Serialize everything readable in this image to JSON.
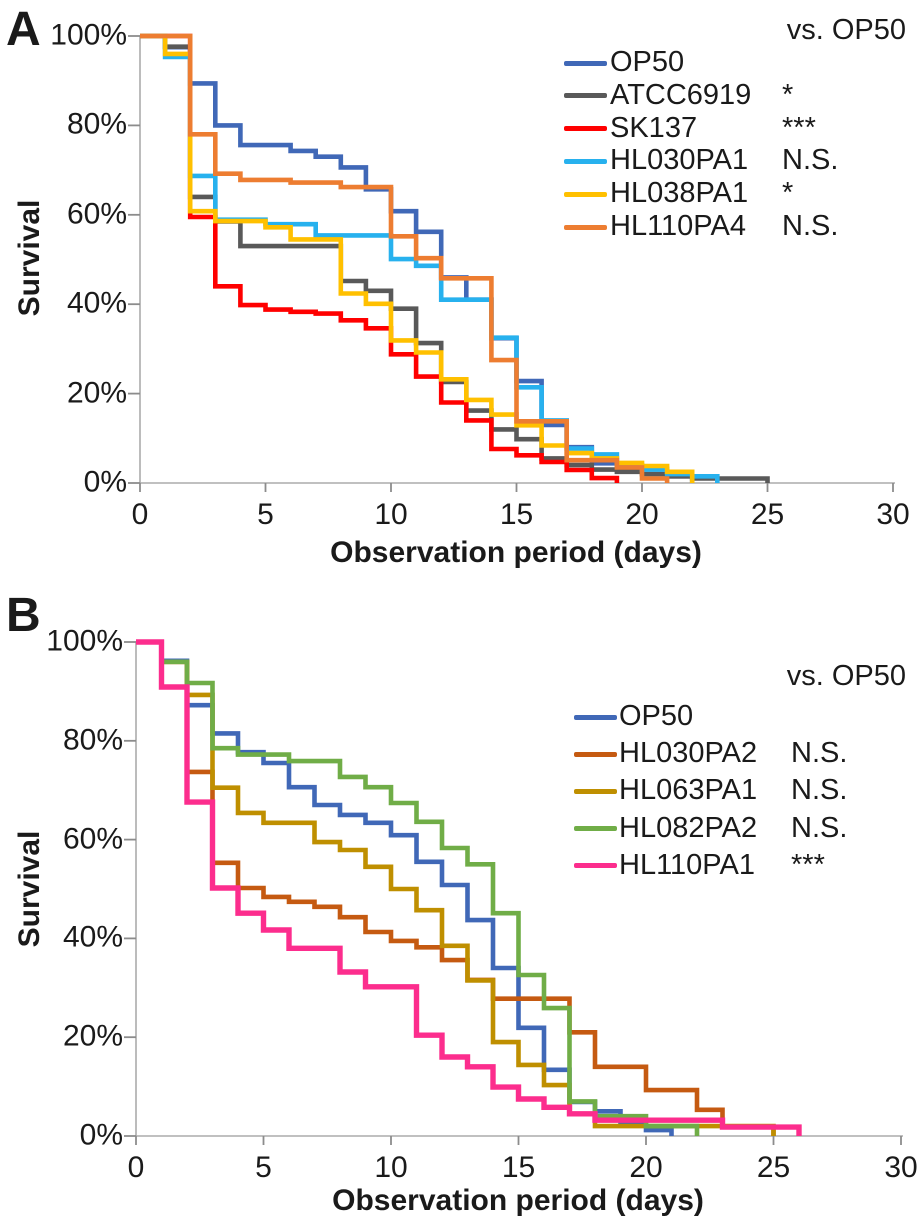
{
  "figure_background": "#FFFFFF",
  "axis_colors": {
    "axis_line": "#ABABAB",
    "tick_mark": "#8C8C8C",
    "text": "#1A1A1A"
  },
  "chart_data": [
    {
      "type": "line",
      "subtype": "kaplan-meier-step-survival",
      "panel_label": "A",
      "comparison_header": "vs. OP50",
      "xlabel": "Observation period (days)",
      "ylabel": "Survival",
      "xlim": [
        0,
        30
      ],
      "ylim_pct": [
        0,
        100
      ],
      "x_ticks": [
        0,
        5,
        10,
        15,
        20,
        25,
        30
      ],
      "y_ticks": [
        {
          "label": "100%",
          "value": 100
        },
        {
          "label": "80%",
          "value": 80
        },
        {
          "label": "60%",
          "value": 60
        },
        {
          "label": "40%",
          "value": 40
        },
        {
          "label": "20%",
          "value": 20
        },
        {
          "label": "0%",
          "value": 0
        }
      ],
      "grid": false,
      "legend_position": "inside-upper-right",
      "series": [
        {
          "name": "OP50",
          "color": "#4068B7",
          "significance_vs_op50": "",
          "points_day_pct": [
            [
              0,
              100
            ],
            [
              1,
              97.5
            ],
            [
              2,
              89.4
            ],
            [
              3,
              80
            ],
            [
              4,
              75.6
            ],
            [
              6,
              74.3
            ],
            [
              7,
              73
            ],
            [
              8,
              70.6
            ],
            [
              9,
              65.7
            ],
            [
              10,
              60.8
            ],
            [
              11,
              56.2
            ],
            [
              12,
              46
            ],
            [
              13,
              41
            ],
            [
              14,
              32.4
            ],
            [
              15,
              22.8
            ],
            [
              16,
              13
            ],
            [
              17,
              8
            ],
            [
              18,
              4.4
            ],
            [
              19,
              3.1
            ],
            [
              21,
              1.5
            ],
            [
              22,
              0
            ]
          ]
        },
        {
          "name": "ATCC6919",
          "color": "#595959",
          "significance_vs_op50": "*",
          "points_day_pct": [
            [
              0,
              100
            ],
            [
              1,
              97.6
            ],
            [
              2,
              64
            ],
            [
              3,
              58.5
            ],
            [
              4,
              53
            ],
            [
              8,
              45.2
            ],
            [
              9,
              43
            ],
            [
              10,
              39
            ],
            [
              11,
              31.3
            ],
            [
              12,
              22.6
            ],
            [
              13,
              16.2
            ],
            [
              14,
              12
            ],
            [
              15,
              9.8
            ],
            [
              16,
              5.5
            ],
            [
              17,
              4
            ],
            [
              18,
              3
            ],
            [
              19,
              2.5
            ],
            [
              20,
              2
            ],
            [
              21,
              1.5
            ],
            [
              22,
              1
            ],
            [
              25,
              0
            ]
          ]
        },
        {
          "name": "SK137",
          "color": "#FF0000",
          "significance_vs_op50": "***",
          "points_day_pct": [
            [
              0,
              100
            ],
            [
              2,
              59.5
            ],
            [
              3,
              44
            ],
            [
              4,
              39.8
            ],
            [
              5,
              38.8
            ],
            [
              6,
              38.3
            ],
            [
              7,
              37.9
            ],
            [
              8,
              36.4
            ],
            [
              9,
              34.6
            ],
            [
              10,
              28.8
            ],
            [
              11,
              23.8
            ],
            [
              12,
              18
            ],
            [
              13,
              14
            ],
            [
              14,
              7.6
            ],
            [
              15,
              6.2
            ],
            [
              16,
              4.7
            ],
            [
              17,
              2.9
            ],
            [
              18,
              1.1
            ],
            [
              19,
              0
            ]
          ]
        },
        {
          "name": "HL030PA1",
          "color": "#27B1EE",
          "significance_vs_op50": "N.S.",
          "points_day_pct": [
            [
              0,
              100
            ],
            [
              1,
              95.3
            ],
            [
              2,
              68.7
            ],
            [
              3,
              58.9
            ],
            [
              5,
              57.9
            ],
            [
              7,
              55.4
            ],
            [
              10,
              50.1
            ],
            [
              11,
              48.6
            ],
            [
              12,
              41
            ],
            [
              14,
              32.5
            ],
            [
              15,
              21.4
            ],
            [
              16,
              14
            ],
            [
              17,
              7.7
            ],
            [
              18,
              6.4
            ],
            [
              19,
              4
            ],
            [
              20,
              3
            ],
            [
              21,
              2
            ],
            [
              22,
              1.5
            ],
            [
              23,
              0
            ]
          ]
        },
        {
          "name": "HL038PA1",
          "color": "#FFC000",
          "significance_vs_op50": "*",
          "points_day_pct": [
            [
              0,
              100
            ],
            [
              1,
              96
            ],
            [
              2,
              60.8
            ],
            [
              3,
              58.6
            ],
            [
              5,
              57.2
            ],
            [
              6,
              54.5
            ],
            [
              8,
              42.4
            ],
            [
              9,
              40.1
            ],
            [
              10,
              31.9
            ],
            [
              11,
              29.2
            ],
            [
              12,
              23.2
            ],
            [
              13,
              18.6
            ],
            [
              14,
              15.3
            ],
            [
              15,
              12.9
            ],
            [
              16,
              8.4
            ],
            [
              17,
              6.7
            ],
            [
              18,
              5.5
            ],
            [
              19,
              4.5
            ],
            [
              20,
              3.8
            ],
            [
              21,
              2.5
            ],
            [
              22,
              0
            ]
          ]
        },
        {
          "name": "HL110PA4",
          "color": "#ED7D31",
          "significance_vs_op50": "N.S.",
          "points_day_pct": [
            [
              0,
              100
            ],
            [
              2,
              78
            ],
            [
              3,
              69.2
            ],
            [
              4,
              67.8
            ],
            [
              6,
              67.2
            ],
            [
              8,
              66.2
            ],
            [
              10,
              55.2
            ],
            [
              11,
              50.3
            ],
            [
              12,
              45.8
            ],
            [
              14,
              27.5
            ],
            [
              15,
              13.8
            ],
            [
              17,
              5.1
            ],
            [
              19,
              3.5
            ],
            [
              20,
              1
            ],
            [
              21,
              0
            ]
          ]
        }
      ]
    },
    {
      "type": "line",
      "subtype": "kaplan-meier-step-survival",
      "panel_label": "B",
      "comparison_header": "vs. OP50",
      "xlabel": "Observation period (days)",
      "ylabel": "Survival",
      "xlim": [
        0,
        30
      ],
      "ylim_pct": [
        0,
        100
      ],
      "x_ticks": [
        0,
        5,
        10,
        15,
        20,
        25,
        30
      ],
      "y_ticks": [
        {
          "label": "100%",
          "value": 100
        },
        {
          "label": "80%",
          "value": 80
        },
        {
          "label": "60%",
          "value": 60
        },
        {
          "label": "40%",
          "value": 40
        },
        {
          "label": "20%",
          "value": 20
        },
        {
          "label": "0%",
          "value": 0
        }
      ],
      "grid": false,
      "legend_position": "inside-upper-right",
      "series": [
        {
          "name": "OP50",
          "color": "#4068B7",
          "significance_vs_op50": "",
          "points_day_pct": [
            [
              0,
              100
            ],
            [
              1,
              96.2
            ],
            [
              2,
              87.2
            ],
            [
              3,
              81.5
            ],
            [
              4,
              77.7
            ],
            [
              5,
              75.5
            ],
            [
              6,
              70.6
            ],
            [
              7,
              67
            ],
            [
              8,
              65
            ],
            [
              9,
              63.4
            ],
            [
              10,
              60.9
            ],
            [
              11,
              55.5
            ],
            [
              12,
              50.8
            ],
            [
              13,
              43.7
            ],
            [
              14,
              34
            ],
            [
              15,
              21.9
            ],
            [
              16,
              13.4
            ],
            [
              17,
              6.9
            ],
            [
              18,
              5
            ],
            [
              19,
              2.6
            ],
            [
              20,
              1.2
            ],
            [
              21,
              0
            ]
          ]
        },
        {
          "name": "HL030PA2",
          "color": "#C55A11",
          "significance_vs_op50": "N.S.",
          "points_day_pct": [
            [
              0,
              100
            ],
            [
              1,
              96
            ],
            [
              2,
              73.7
            ],
            [
              3,
              55.3
            ],
            [
              4,
              50.2
            ],
            [
              5,
              48.4
            ],
            [
              6,
              47.4
            ],
            [
              7,
              46.4
            ],
            [
              8,
              44.3
            ],
            [
              9,
              41.3
            ],
            [
              10,
              39.5
            ],
            [
              11,
              38.2
            ],
            [
              12,
              35.6
            ],
            [
              13,
              31.6
            ],
            [
              14,
              27.8
            ],
            [
              17,
              21
            ],
            [
              18,
              14
            ],
            [
              20,
              9.3
            ],
            [
              22,
              5.3
            ],
            [
              23,
              1.8
            ],
            [
              25,
              0
            ]
          ]
        },
        {
          "name": "HL063PA1",
          "color": "#BF8F00",
          "significance_vs_op50": "N.S.",
          "points_day_pct": [
            [
              0,
              100
            ],
            [
              1,
              96
            ],
            [
              2,
              89.3
            ],
            [
              3,
              70.5
            ],
            [
              4,
              65.4
            ],
            [
              5,
              63.4
            ],
            [
              7,
              59.5
            ],
            [
              8,
              57.9
            ],
            [
              9,
              54.5
            ],
            [
              10,
              50
            ],
            [
              11,
              45.7
            ],
            [
              12,
              38.5
            ],
            [
              13,
              31.5
            ],
            [
              14,
              19
            ],
            [
              15,
              14.4
            ],
            [
              16,
              10.3
            ],
            [
              17,
              4.5
            ],
            [
              18,
              2
            ],
            [
              25,
              0
            ]
          ]
        },
        {
          "name": "HL082PA2",
          "color": "#70AD47",
          "significance_vs_op50": "N.S.",
          "points_day_pct": [
            [
              0,
              100
            ],
            [
              1,
              96
            ],
            [
              2,
              91.7
            ],
            [
              3,
              78.5
            ],
            [
              4,
              77.2
            ],
            [
              6,
              75.9
            ],
            [
              8,
              72.7
            ],
            [
              9,
              70.6
            ],
            [
              10,
              67.4
            ],
            [
              11,
              63.6
            ],
            [
              12,
              58.3
            ],
            [
              13,
              55
            ],
            [
              14,
              45.1
            ],
            [
              15,
              32.6
            ],
            [
              16,
              25.9
            ],
            [
              17,
              7
            ],
            [
              18,
              4
            ],
            [
              20,
              2
            ],
            [
              22,
              0
            ]
          ]
        },
        {
          "name": "HL110PA1",
          "color": "#FC2D8D",
          "significance_vs_op50": "***",
          "points_day_pct": [
            [
              0,
              100
            ],
            [
              1,
              90.9
            ],
            [
              2,
              67.6
            ],
            [
              3,
              50.2
            ],
            [
              4,
              45.1
            ],
            [
              5,
              41.7
            ],
            [
              6,
              38
            ],
            [
              8,
              33.2
            ],
            [
              9,
              30.2
            ],
            [
              11,
              20.4
            ],
            [
              12,
              16
            ],
            [
              13,
              14
            ],
            [
              14,
              9.9
            ],
            [
              15,
              7.5
            ],
            [
              16,
              5.8
            ],
            [
              17,
              4.5
            ],
            [
              18,
              3.2
            ],
            [
              23,
              1.8
            ],
            [
              26,
              0
            ]
          ]
        }
      ]
    }
  ]
}
